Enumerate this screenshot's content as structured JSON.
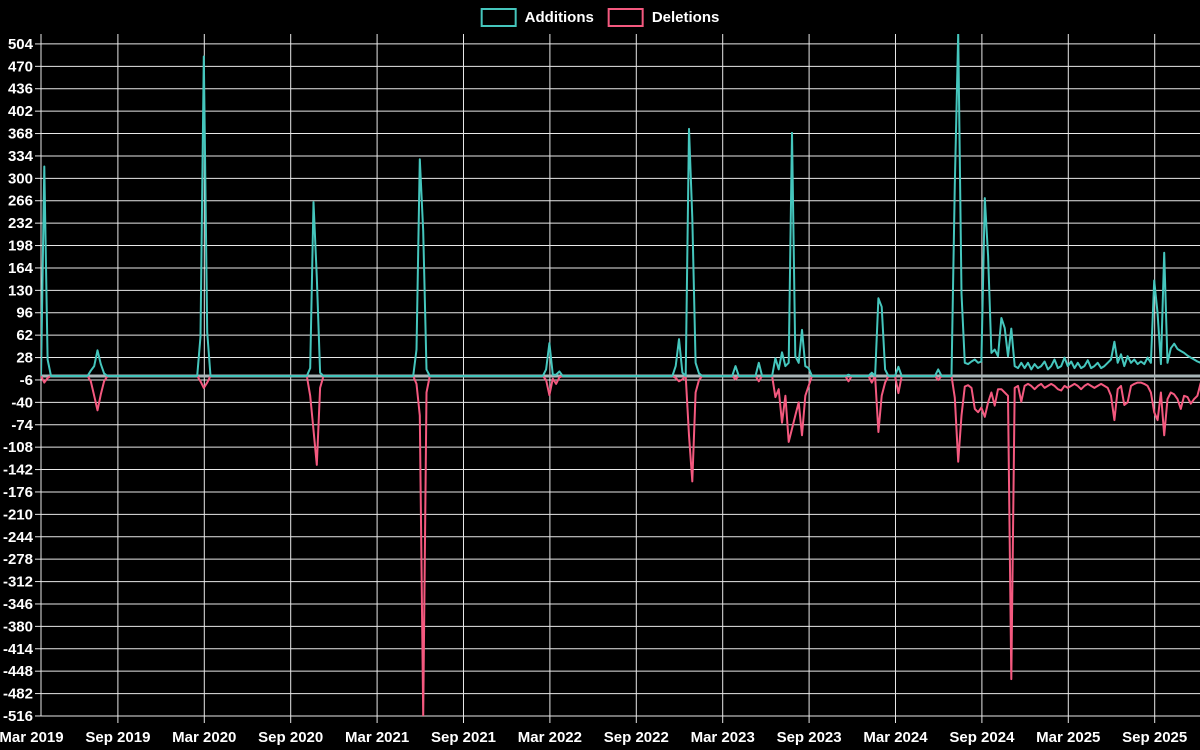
{
  "chart_data": {
    "type": "line",
    "title": "",
    "xlabel": "",
    "ylabel": "",
    "background": "#000000",
    "grid": true,
    "grid_color": "#e8e8e8",
    "zero_line_color": "#a9b6b8",
    "text_color": "#ffffff",
    "legend_position": "top-center",
    "series": [
      {
        "name": "Additions",
        "color": "#45c6bd"
      },
      {
        "name": "Deletions",
        "color": "#f4597f"
      }
    ],
    "x_axis": {
      "tick_labels": [
        "Mar 2019",
        "Sep 2019",
        "Mar 2020",
        "Sep 2020",
        "Mar 2021",
        "Sep 2021",
        "Mar 2022",
        "Sep 2022",
        "Mar 2023",
        "Sep 2023",
        "Mar 2024",
        "Sep 2024",
        "Mar 2025",
        "Sep 2025"
      ],
      "first_tick_week": -2.86,
      "tick_step_weeks": 26,
      "total_weeks": 350,
      "unit": "weeks since 2019-03-24"
    },
    "y_axis": {
      "ticks": [
        504,
        470,
        436,
        402,
        368,
        334,
        300,
        266,
        232,
        198,
        164,
        130,
        96,
        62,
        28,
        -6,
        -40,
        -74,
        -108,
        -142,
        -176,
        -210,
        -244,
        -278,
        -312,
        -346,
        -380,
        -414,
        -448,
        -482,
        -516
      ],
      "range": [
        -516,
        519
      ]
    },
    "points_format": [
      "week_index",
      "additions",
      "deletions"
    ],
    "points": [
      [
        1,
        318,
        -10
      ],
      [
        2,
        25,
        -3
      ],
      [
        15,
        8,
        -8
      ],
      [
        16,
        15,
        -30
      ],
      [
        17,
        39,
        -52
      ],
      [
        18,
        18,
        -28
      ],
      [
        19,
        4,
        -8
      ],
      [
        48,
        60,
        -8
      ],
      [
        49,
        485,
        -18
      ],
      [
        50,
        67,
        -10
      ],
      [
        81,
        12,
        -30
      ],
      [
        82,
        264,
        -82
      ],
      [
        83,
        150,
        -135
      ],
      [
        84,
        5,
        -18
      ],
      [
        113,
        40,
        -12
      ],
      [
        114,
        329,
        -60
      ],
      [
        115,
        220,
        -516
      ],
      [
        116,
        10,
        -25
      ],
      [
        152,
        10,
        -6
      ],
      [
        153,
        50,
        -29
      ],
      [
        154,
        2,
        -4
      ],
      [
        155,
        2,
        -12
      ],
      [
        156,
        7,
        -2
      ],
      [
        191,
        15,
        -3
      ],
      [
        192,
        56,
        -8
      ],
      [
        193,
        5,
        -5
      ],
      [
        195,
        375,
        -90
      ],
      [
        196,
        240,
        -160
      ],
      [
        197,
        20,
        -25
      ],
      [
        198,
        4,
        -6
      ],
      [
        209,
        15,
        -5
      ],
      [
        216,
        20,
        -8
      ],
      [
        221,
        27,
        -32
      ],
      [
        222,
        10,
        -20
      ],
      [
        223,
        36,
        -71
      ],
      [
        224,
        15,
        -30
      ],
      [
        225,
        20,
        -100
      ],
      [
        226,
        369,
        -80
      ],
      [
        227,
        30,
        -60
      ],
      [
        228,
        20,
        -40
      ],
      [
        229,
        70,
        -90
      ],
      [
        230,
        15,
        -30
      ],
      [
        231,
        12,
        -15
      ],
      [
        243,
        2,
        -8
      ],
      [
        250,
        5,
        -10
      ],
      [
        252,
        118,
        -85
      ],
      [
        253,
        105,
        -30
      ],
      [
        254,
        10,
        -10
      ],
      [
        258,
        14,
        -26
      ],
      [
        270,
        10,
        -6
      ],
      [
        275,
        290,
        -33
      ],
      [
        276,
        520,
        -130
      ],
      [
        277,
        125,
        -60
      ],
      [
        278,
        20,
        -16
      ],
      [
        279,
        18,
        -14
      ],
      [
        280,
        22,
        -18
      ],
      [
        281,
        25,
        -50
      ],
      [
        282,
        20,
        -55
      ],
      [
        283,
        22,
        -48
      ],
      [
        284,
        270,
        -62
      ],
      [
        285,
        182,
        -40
      ],
      [
        286,
        35,
        -25
      ],
      [
        287,
        40,
        -45
      ],
      [
        288,
        30,
        -20
      ],
      [
        289,
        88,
        -20
      ],
      [
        290,
        73,
        -25
      ],
      [
        291,
        30,
        -30
      ],
      [
        292,
        72,
        -460
      ],
      [
        293,
        15,
        -18
      ],
      [
        294,
        12,
        -15
      ],
      [
        295,
        20,
        -39
      ],
      [
        296,
        12,
        -15
      ],
      [
        297,
        20,
        -12
      ],
      [
        298,
        10,
        -15
      ],
      [
        299,
        18,
        -20
      ],
      [
        300,
        12,
        -15
      ],
      [
        301,
        15,
        -12
      ],
      [
        302,
        22,
        -18
      ],
      [
        303,
        10,
        -15
      ],
      [
        304,
        15,
        -12
      ],
      [
        305,
        25,
        -15
      ],
      [
        306,
        12,
        -20
      ],
      [
        307,
        15,
        -22
      ],
      [
        308,
        28,
        -15
      ],
      [
        309,
        15,
        -18
      ],
      [
        310,
        22,
        -15
      ],
      [
        311,
        12,
        -12
      ],
      [
        312,
        20,
        -15
      ],
      [
        313,
        12,
        -20
      ],
      [
        314,
        15,
        -15
      ],
      [
        315,
        24,
        -12
      ],
      [
        316,
        12,
        -15
      ],
      [
        317,
        15,
        -18
      ],
      [
        318,
        20,
        -15
      ],
      [
        319,
        12,
        -12
      ],
      [
        320,
        15,
        -15
      ],
      [
        321,
        20,
        -18
      ],
      [
        322,
        25,
        -30
      ],
      [
        323,
        52,
        -67
      ],
      [
        324,
        20,
        -20
      ],
      [
        325,
        33,
        -15
      ],
      [
        326,
        15,
        -44
      ],
      [
        327,
        30,
        -40
      ],
      [
        328,
        20,
        -15
      ],
      [
        329,
        25,
        -12
      ],
      [
        330,
        18,
        -10
      ],
      [
        331,
        22,
        -10
      ],
      [
        332,
        18,
        -12
      ],
      [
        333,
        28,
        -15
      ],
      [
        334,
        20,
        -25
      ],
      [
        335,
        145,
        -55
      ],
      [
        336,
        95,
        -67
      ],
      [
        337,
        18,
        -25
      ],
      [
        338,
        187,
        -90
      ],
      [
        339,
        20,
        -35
      ],
      [
        340,
        42,
        -25
      ],
      [
        341,
        49,
        -28
      ],
      [
        342,
        41,
        -35
      ],
      [
        343,
        38,
        -50
      ],
      [
        344,
        35,
        -30
      ],
      [
        345,
        31,
        -32
      ],
      [
        346,
        28,
        -42
      ],
      [
        347,
        25,
        -35
      ],
      [
        348,
        22,
        -30
      ],
      [
        349,
        20,
        -10
      ]
    ]
  },
  "legend": {
    "items": [
      {
        "label": "Additions",
        "color": "#45c6bd"
      },
      {
        "label": "Deletions",
        "color": "#f4597f"
      }
    ]
  }
}
